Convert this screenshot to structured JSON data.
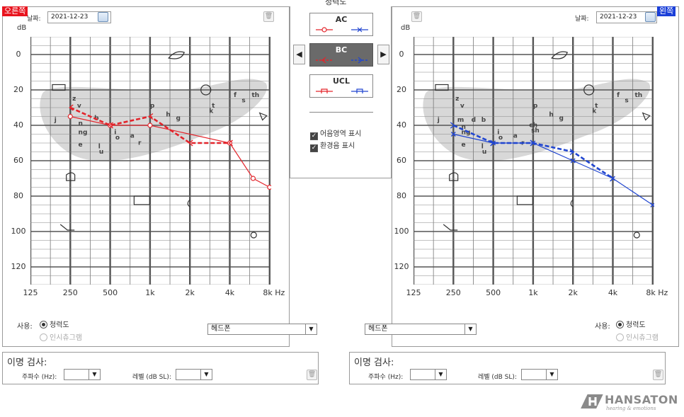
{
  "top_title": "청력도",
  "right_ear": {
    "tag": "오른쪽",
    "date_label": "날짜:",
    "date_value": "2021-12-23",
    "use_label": "사용:",
    "radio_audiogram": "청력도",
    "radio_inc": "인시츄그램",
    "dropdown_value": "헤드폰"
  },
  "left_ear": {
    "tag": "왼쪽",
    "date_label": "날짜:",
    "date_value": "2021-12-23",
    "use_label": "사용:",
    "radio_audiogram": "청력도",
    "radio_inc": "인시츄그램",
    "dropdown_value": "헤드폰"
  },
  "axis": {
    "y_unit": "dB",
    "y_ticks": [
      "0",
      "20",
      "40",
      "60",
      "80",
      "100",
      "120"
    ],
    "x_ticks": [
      "125",
      "250",
      "500",
      "1k",
      "2k",
      "4k",
      "8k"
    ],
    "x_unit": "Hz"
  },
  "legend": {
    "ac": "AC",
    "bc": "BC",
    "ucl": "UCL",
    "prev_arrow": "◀",
    "next_arrow": "▶"
  },
  "options": {
    "speech_banana": "어음영역 표시",
    "env_sounds": "환경음 표시"
  },
  "phonemes": {
    "right": [
      "z",
      "v",
      "j",
      "n",
      "b",
      "ng",
      "e",
      "l",
      "u",
      "i",
      "o",
      "a",
      "r",
      "p",
      "h",
      "g",
      "t",
      "k",
      "f",
      "s",
      "th"
    ],
    "left": [
      "z",
      "v",
      "j",
      "m",
      "d",
      "b",
      "n",
      "ng",
      "e",
      "l",
      "u",
      "i",
      "o",
      "a",
      "r",
      "p",
      "h",
      "g",
      "ch",
      "sh",
      "t",
      "k",
      "f",
      "s",
      "th"
    ]
  },
  "tests": {
    "title": "이명 검사:",
    "freq_label": "주파수 (Hz):",
    "level_label": "레벨 (dB SL):"
  },
  "logo": {
    "name": "HANSATON",
    "tagline": "hearing & emotions"
  },
  "colors": {
    "right": "#e3242b",
    "left": "#2045d0",
    "banana": "#d8d8d8",
    "grid": "#555555"
  },
  "chart_data": [
    {
      "type": "line",
      "ear": "right",
      "x": [
        "125",
        "250",
        "500",
        "1k",
        "2k",
        "4k",
        "6k",
        "8k"
      ],
      "series": [
        {
          "name": "AC",
          "values": [
            null,
            35,
            40,
            40,
            null,
            50,
            70,
            75
          ]
        },
        {
          "name": "BC",
          "values": [
            null,
            30,
            40,
            35,
            50,
            50,
            null,
            null
          ]
        }
      ],
      "ylim": [
        130,
        -10
      ]
    },
    {
      "type": "line",
      "ear": "left",
      "x": [
        "125",
        "250",
        "500",
        "1k",
        "2k",
        "4k",
        "8k"
      ],
      "series": [
        {
          "name": "AC",
          "values": [
            null,
            45,
            50,
            50,
            60,
            70,
            85
          ]
        },
        {
          "name": "BC",
          "values": [
            null,
            40,
            50,
            50,
            55,
            70,
            null
          ]
        }
      ],
      "ylim": [
        130,
        -10
      ]
    }
  ]
}
